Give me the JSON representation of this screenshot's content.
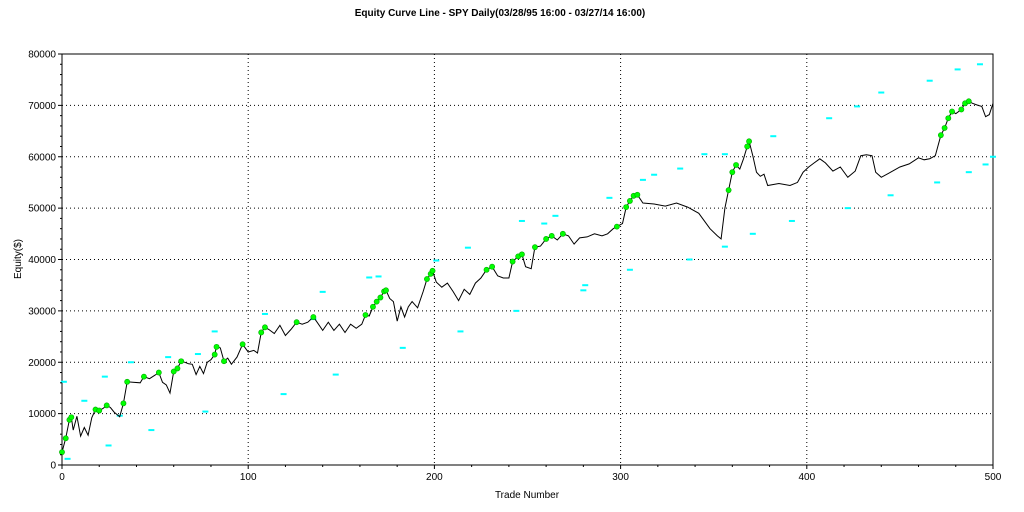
{
  "chart_data": {
    "type": "line",
    "title": "Equity Curve Line - SPY Daily(03/28/95 16:00 - 03/27/14 16:00)",
    "xlabel": "Trade Number",
    "ylabel": "Equity($)",
    "xlim": [
      0,
      500
    ],
    "ylim": [
      0,
      80000
    ],
    "xticks": [
      0,
      100,
      200,
      300,
      400,
      500
    ],
    "yticks": [
      0,
      10000,
      20000,
      30000,
      40000,
      50000,
      60000,
      70000,
      80000
    ],
    "grid": true,
    "colors": {
      "line": "#000000",
      "new_high_marker": "#00ff00",
      "marker_outline": "#00aa00",
      "trade_marker": "#00ffff"
    },
    "series": [
      {
        "values": [
          [
            0,
            2500
          ],
          [
            2,
            5200
          ],
          [
            4,
            8800
          ],
          [
            5,
            9300
          ],
          [
            6,
            6800
          ],
          [
            8,
            9500
          ],
          [
            10,
            5600
          ],
          [
            12,
            7300
          ],
          [
            14,
            5800
          ],
          [
            16,
            9200
          ],
          [
            18,
            10800
          ],
          [
            20,
            10600
          ],
          [
            22,
            11000
          ],
          [
            24,
            11600
          ],
          [
            26,
            11200
          ],
          [
            28,
            10300
          ],
          [
            31,
            9400
          ],
          [
            33,
            12000
          ],
          [
            35,
            16200
          ],
          [
            38,
            16100
          ],
          [
            42,
            16000
          ],
          [
            44,
            17200
          ],
          [
            47,
            16800
          ],
          [
            50,
            17500
          ],
          [
            52,
            18000
          ],
          [
            54,
            16100
          ],
          [
            56,
            15600
          ],
          [
            58,
            14000
          ],
          [
            60,
            18200
          ],
          [
            62,
            18800
          ],
          [
            64,
            20200
          ],
          [
            66,
            20000
          ],
          [
            68,
            19700
          ],
          [
            70,
            19600
          ],
          [
            72,
            17600
          ],
          [
            74,
            19200
          ],
          [
            76,
            17800
          ],
          [
            78,
            20000
          ],
          [
            80,
            20500
          ],
          [
            82,
            21500
          ],
          [
            83,
            23000
          ],
          [
            85,
            22800
          ],
          [
            87,
            20200
          ],
          [
            89,
            20800
          ],
          [
            91,
            19600
          ],
          [
            94,
            21000
          ],
          [
            97,
            23500
          ],
          [
            100,
            22000
          ],
          [
            103,
            22300
          ],
          [
            105,
            21800
          ],
          [
            107,
            25800
          ],
          [
            109,
            26800
          ],
          [
            111,
            26400
          ],
          [
            114,
            25600
          ],
          [
            117,
            27200
          ],
          [
            120,
            25200
          ],
          [
            123,
            26400
          ],
          [
            126,
            27800
          ],
          [
            129,
            27400
          ],
          [
            132,
            27800
          ],
          [
            135,
            28800
          ],
          [
            137,
            27800
          ],
          [
            140,
            26200
          ],
          [
            143,
            27800
          ],
          [
            146,
            26200
          ],
          [
            149,
            27400
          ],
          [
            152,
            25800
          ],
          [
            155,
            27400
          ],
          [
            158,
            26600
          ],
          [
            161,
            27400
          ],
          [
            163,
            29200
          ],
          [
            165,
            29000
          ],
          [
            167,
            30800
          ],
          [
            169,
            31800
          ],
          [
            171,
            32600
          ],
          [
            173,
            33800
          ],
          [
            174,
            34000
          ],
          [
            176,
            32400
          ],
          [
            178,
            31800
          ],
          [
            180,
            28000
          ],
          [
            182,
            30800
          ],
          [
            184,
            28800
          ],
          [
            186,
            30800
          ],
          [
            188,
            31800
          ],
          [
            191,
            30600
          ],
          [
            194,
            33800
          ],
          [
            196,
            36200
          ],
          [
            198,
            37200
          ],
          [
            199,
            37800
          ],
          [
            201,
            35600
          ],
          [
            204,
            34600
          ],
          [
            207,
            35400
          ],
          [
            210,
            33800
          ],
          [
            213,
            32000
          ],
          [
            216,
            34200
          ],
          [
            219,
            33200
          ],
          [
            222,
            35400
          ],
          [
            225,
            36400
          ],
          [
            228,
            38000
          ],
          [
            231,
            38600
          ],
          [
            234,
            36800
          ],
          [
            237,
            36400
          ],
          [
            240,
            36400
          ],
          [
            242,
            39600
          ],
          [
            245,
            40600
          ],
          [
            247,
            41000
          ],
          [
            249,
            38600
          ],
          [
            252,
            38200
          ],
          [
            254,
            42400
          ],
          [
            257,
            42600
          ],
          [
            260,
            44000
          ],
          [
            263,
            44600
          ],
          [
            266,
            43800
          ],
          [
            269,
            45000
          ],
          [
            272,
            44600
          ],
          [
            275,
            43000
          ],
          [
            278,
            44200
          ],
          [
            282,
            44400
          ],
          [
            286,
            45000
          ],
          [
            290,
            44600
          ],
          [
            293,
            45000
          ],
          [
            296,
            46000
          ],
          [
            298,
            46400
          ],
          [
            301,
            47000
          ],
          [
            303,
            50200
          ],
          [
            305,
            51400
          ],
          [
            307,
            52400
          ],
          [
            309,
            52600
          ],
          [
            312,
            51000
          ],
          [
            318,
            50800
          ],
          [
            324,
            50400
          ],
          [
            330,
            51000
          ],
          [
            336,
            50200
          ],
          [
            342,
            49000
          ],
          [
            348,
            46000
          ],
          [
            352,
            44600
          ],
          [
            354,
            44000
          ],
          [
            356,
            50000
          ],
          [
            358,
            53500
          ],
          [
            360,
            57000
          ],
          [
            362,
            58400
          ],
          [
            364,
            57600
          ],
          [
            366,
            59600
          ],
          [
            368,
            62000
          ],
          [
            369,
            63000
          ],
          [
            371,
            60200
          ],
          [
            373,
            57000
          ],
          [
            375,
            56200
          ],
          [
            377,
            56600
          ],
          [
            379,
            54400
          ],
          [
            385,
            54800
          ],
          [
            391,
            54400
          ],
          [
            395,
            55000
          ],
          [
            398,
            57000
          ],
          [
            401,
            58000
          ],
          [
            404,
            58800
          ],
          [
            407,
            59600
          ],
          [
            410,
            58800
          ],
          [
            414,
            57200
          ],
          [
            418,
            58000
          ],
          [
            422,
            56000
          ],
          [
            426,
            57200
          ],
          [
            429,
            60200
          ],
          [
            432,
            60400
          ],
          [
            435,
            60200
          ],
          [
            437,
            57000
          ],
          [
            440,
            56000
          ],
          [
            445,
            57000
          ],
          [
            450,
            58000
          ],
          [
            455,
            58600
          ],
          [
            460,
            59800
          ],
          [
            463,
            59400
          ],
          [
            466,
            59600
          ],
          [
            469,
            60200
          ],
          [
            472,
            64200
          ],
          [
            474,
            65600
          ],
          [
            476,
            67500
          ],
          [
            478,
            68800
          ],
          [
            480,
            68400
          ],
          [
            483,
            69200
          ],
          [
            485,
            70400
          ],
          [
            487,
            70800
          ],
          [
            489,
            70400
          ],
          [
            492,
            70000
          ],
          [
            494,
            69800
          ],
          [
            496,
            67800
          ],
          [
            498,
            68200
          ],
          [
            500,
            70400
          ]
        ]
      }
    ],
    "new_high_points": [
      [
        0,
        2500
      ],
      [
        2,
        5200
      ],
      [
        4,
        8800
      ],
      [
        5,
        9300
      ],
      [
        18,
        10800
      ],
      [
        20,
        10600
      ],
      [
        24,
        11600
      ],
      [
        33,
        12000
      ],
      [
        35,
        16200
      ],
      [
        44,
        17200
      ],
      [
        52,
        18000
      ],
      [
        60,
        18200
      ],
      [
        62,
        18800
      ],
      [
        64,
        20200
      ],
      [
        82,
        21500
      ],
      [
        83,
        23000
      ],
      [
        87,
        20200
      ],
      [
        97,
        23500
      ],
      [
        107,
        25800
      ],
      [
        109,
        26800
      ],
      [
        126,
        27800
      ],
      [
        135,
        28800
      ],
      [
        163,
        29200
      ],
      [
        167,
        30800
      ],
      [
        169,
        31800
      ],
      [
        171,
        32600
      ],
      [
        173,
        33800
      ],
      [
        174,
        34000
      ],
      [
        196,
        36200
      ],
      [
        198,
        37200
      ],
      [
        199,
        37800
      ],
      [
        228,
        38000
      ],
      [
        231,
        38600
      ],
      [
        242,
        39600
      ],
      [
        245,
        40600
      ],
      [
        247,
        41000
      ],
      [
        254,
        42400
      ],
      [
        260,
        44000
      ],
      [
        263,
        44600
      ],
      [
        269,
        45000
      ],
      [
        298,
        46400
      ],
      [
        303,
        50200
      ],
      [
        305,
        51400
      ],
      [
        307,
        52400
      ],
      [
        309,
        52600
      ],
      [
        358,
        53500
      ],
      [
        360,
        57000
      ],
      [
        362,
        58400
      ],
      [
        368,
        62000
      ],
      [
        369,
        63000
      ],
      [
        472,
        64200
      ],
      [
        474,
        65600
      ],
      [
        476,
        67500
      ],
      [
        478,
        68800
      ],
      [
        483,
        69200
      ],
      [
        485,
        70400
      ],
      [
        487,
        70800
      ]
    ],
    "trade_marks": [
      [
        1,
        16200
      ],
      [
        3,
        1200
      ],
      [
        12,
        12500
      ],
      [
        23,
        17200
      ],
      [
        25,
        3800
      ],
      [
        31,
        9600
      ],
      [
        37,
        20000
      ],
      [
        48,
        6800
      ],
      [
        57,
        21000
      ],
      [
        73,
        21600
      ],
      [
        77,
        10400
      ],
      [
        82,
        26000
      ],
      [
        109,
        29400
      ],
      [
        119,
        13800
      ],
      [
        135,
        28400
      ],
      [
        140,
        33700
      ],
      [
        147,
        17600
      ],
      [
        165,
        36500
      ],
      [
        170,
        36700
      ],
      [
        183,
        22800
      ],
      [
        201,
        39800
      ],
      [
        214,
        26000
      ],
      [
        218,
        42300
      ],
      [
        244,
        30000
      ],
      [
        247,
        47500
      ],
      [
        259,
        47000
      ],
      [
        265,
        48500
      ],
      [
        280,
        34000
      ],
      [
        281,
        35000
      ],
      [
        294,
        52000
      ],
      [
        305,
        38000
      ],
      [
        312,
        55500
      ],
      [
        318,
        56500
      ],
      [
        332,
        57700
      ],
      [
        337,
        40000
      ],
      [
        345,
        60500
      ],
      [
        356,
        42500
      ],
      [
        356,
        60500
      ],
      [
        371,
        45000
      ],
      [
        382,
        64000
      ],
      [
        392,
        47500
      ],
      [
        412,
        67500
      ],
      [
        422,
        50000
      ],
      [
        427,
        69800
      ],
      [
        440,
        72500
      ],
      [
        445,
        52500
      ],
      [
        466,
        74800
      ],
      [
        470,
        55000
      ],
      [
        481,
        77000
      ],
      [
        487,
        57000
      ],
      [
        493,
        78000
      ],
      [
        496,
        58500
      ],
      [
        500,
        60000
      ]
    ]
  }
}
